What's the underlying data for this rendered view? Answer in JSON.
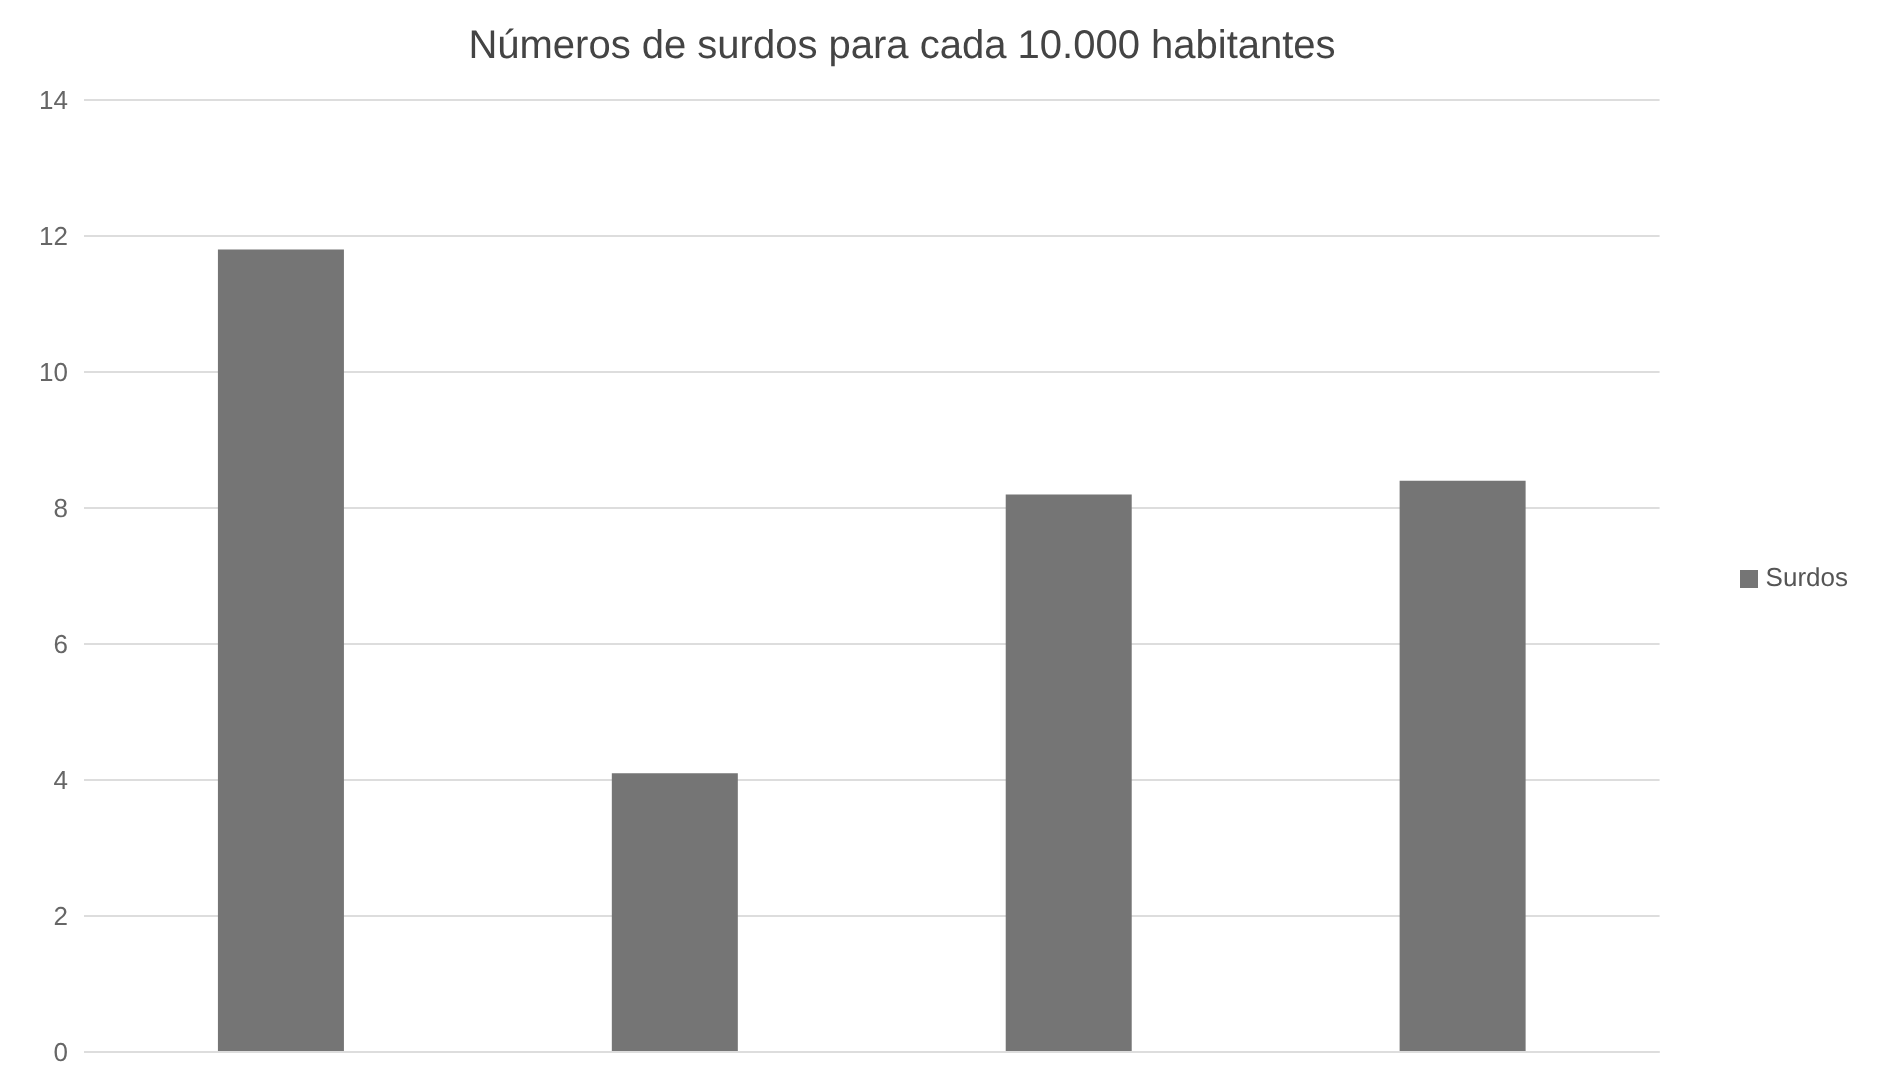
{
  "chart_data": {
    "type": "bar",
    "title": "Números de surdos para cada 10.000 habitantes",
    "categories": [
      null,
      null,
      null,
      null
    ],
    "series": [
      {
        "name": "Surdos",
        "color": "#757575",
        "values": [
          11.8,
          4.1,
          8.2,
          8.4
        ]
      }
    ],
    "ylim": [
      0,
      14
    ],
    "yticks": [
      0,
      2,
      4,
      6,
      8,
      10,
      12,
      14
    ],
    "grid": "y",
    "legend": "right"
  }
}
